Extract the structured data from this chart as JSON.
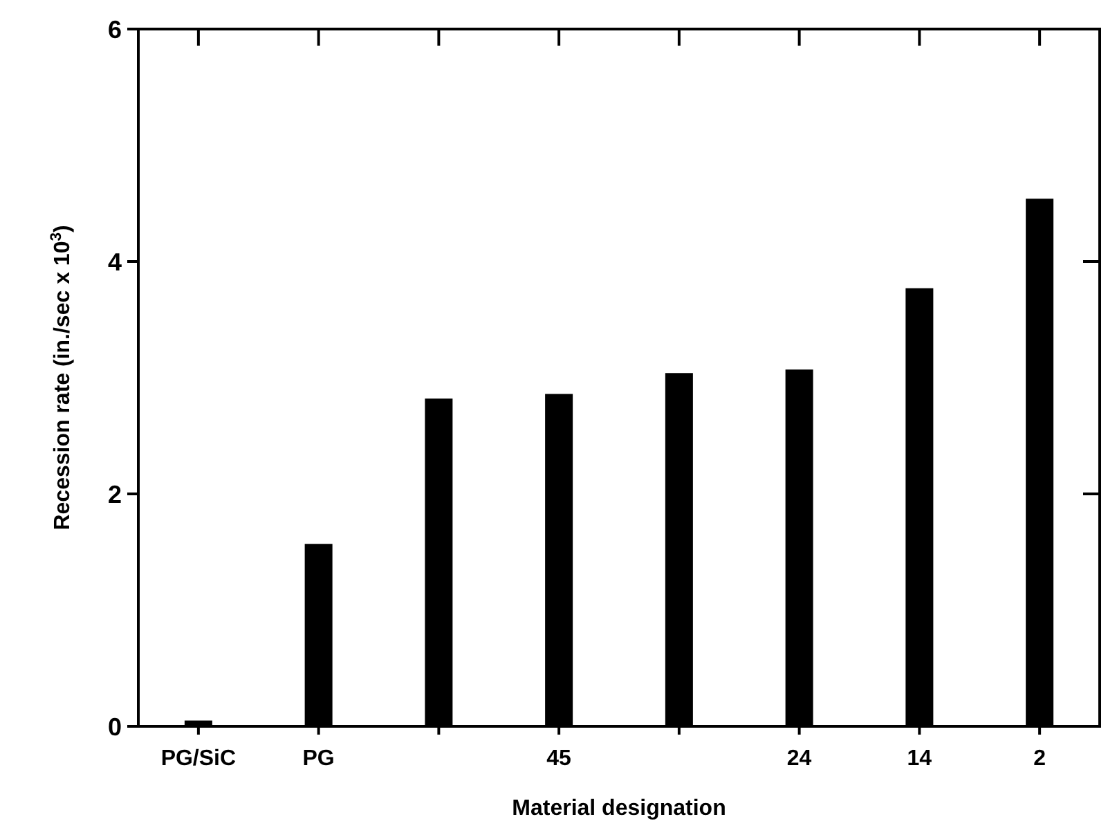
{
  "chart_data": {
    "type": "bar",
    "xlabel": "Material designation",
    "ylabel": "Recession rate (in./sec x 10$^{3}$)",
    "categories": [
      "PG/SiC",
      "PG",
      null,
      "45",
      null,
      "24",
      "14",
      "2"
    ],
    "values": [
      0.05,
      1.57,
      2.82,
      2.86,
      3.04,
      3.07,
      3.77,
      4.54
    ],
    "color": "#000000",
    "ylim": [
      0,
      6
    ],
    "yticks": [
      0,
      2,
      4,
      6
    ]
  }
}
